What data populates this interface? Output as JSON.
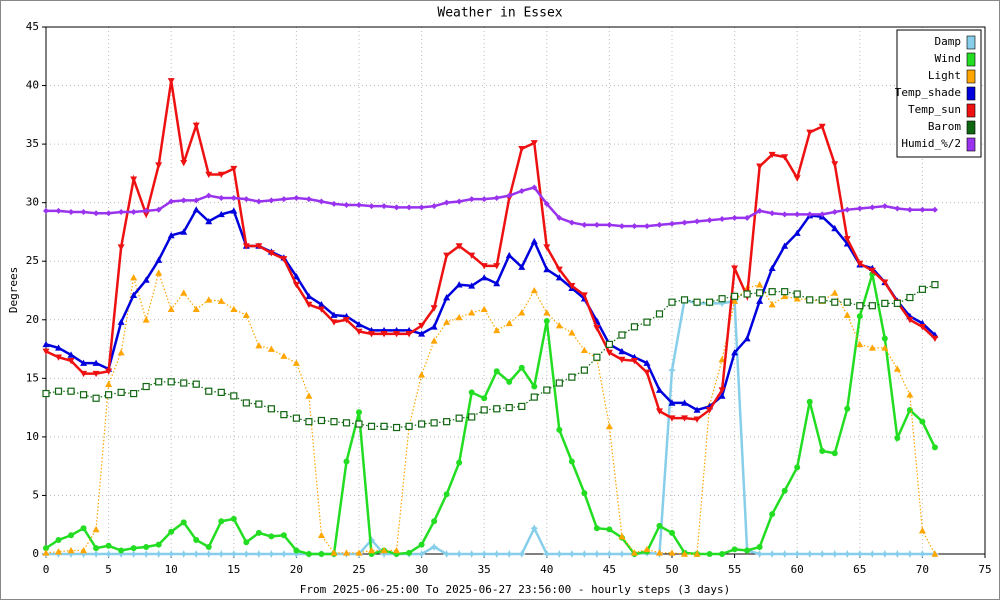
{
  "chart_data": {
    "type": "line",
    "title": "Weather in Essex",
    "ylabel": "Degrees",
    "xlabel": "From 2025-06-25:00 To 2025-06-27 23:56:00 - hourly steps (3 days)",
    "xlim": [
      0,
      75
    ],
    "ylim": [
      0,
      45
    ],
    "xticks": [
      0,
      5,
      10,
      15,
      20,
      25,
      30,
      35,
      40,
      45,
      50,
      55,
      60,
      65,
      70,
      75
    ],
    "yticks": [
      0,
      5,
      10,
      15,
      20,
      25,
      30,
      35,
      40,
      45
    ],
    "grid": true,
    "legend": "upper right",
    "x": [
      0,
      1,
      2,
      3,
      4,
      5,
      6,
      7,
      8,
      9,
      10,
      11,
      12,
      13,
      14,
      15,
      16,
      17,
      18,
      19,
      20,
      21,
      22,
      23,
      24,
      25,
      26,
      27,
      28,
      29,
      30,
      31,
      32,
      33,
      34,
      35,
      36,
      37,
      38,
      39,
      40,
      41,
      42,
      43,
      44,
      45,
      46,
      47,
      48,
      49,
      50,
      51,
      52,
      53,
      54,
      55,
      56,
      57,
      58,
      59,
      60,
      61,
      62,
      63,
      64,
      65,
      66,
      67,
      68,
      69,
      70,
      71
    ],
    "series": [
      {
        "name": "Damp",
        "color": "#87ceeb",
        "marker": "star",
        "style": "solid",
        "values": [
          0,
          0,
          0,
          0,
          0,
          0,
          0,
          0,
          0,
          0,
          0,
          0,
          0,
          0,
          0,
          0,
          0,
          0,
          0,
          0,
          0,
          0,
          0,
          0,
          0,
          0,
          1.2,
          0,
          0,
          0,
          0,
          0.6,
          0,
          0,
          0,
          0,
          0,
          0,
          0,
          2.2,
          0,
          0,
          0,
          0,
          0,
          0,
          0,
          0,
          0.1,
          0,
          15.7,
          21.7,
          21.4,
          21.4,
          21.4,
          21.6,
          0.3,
          0,
          0,
          0,
          0,
          0,
          0,
          0,
          0,
          0,
          0,
          0,
          0,
          0,
          0,
          0
        ]
      },
      {
        "name": "Wind",
        "color": "#22dd22",
        "marker": "circle",
        "style": "solid",
        "values": [
          0.5,
          1.2,
          1.6,
          2.2,
          0.5,
          0.7,
          0.3,
          0.5,
          0.6,
          0.8,
          1.9,
          2.7,
          1.2,
          0.6,
          2.8,
          3.0,
          1.0,
          1.8,
          1.5,
          1.6,
          0.3,
          0,
          0,
          0,
          7.9,
          12.1,
          0,
          0.3,
          0,
          0.1,
          0.8,
          2.8,
          5.1,
          7.8,
          13.8,
          13.3,
          15.6,
          14.7,
          15.9,
          14.3,
          19.9,
          10.6,
          7.9,
          5.2,
          2.2,
          2.1,
          1.4,
          0,
          0.2,
          2.4,
          1.8,
          0.1,
          0,
          0,
          0,
          0.4,
          0.3,
          0.6,
          3.4,
          5.4,
          7.4,
          13.0,
          8.8,
          8.6,
          12.4,
          20.3,
          23.9,
          18.4,
          9.9,
          12.3,
          11.3,
          9.1
        ]
      },
      {
        "name": "Light",
        "color": "#ffa500",
        "marker": "triangle-up",
        "style": "dotted",
        "values": [
          0.1,
          0.2,
          0.3,
          0.3,
          2.1,
          14.5,
          17.2,
          23.6,
          20.0,
          24.0,
          20.9,
          22.3,
          20.9,
          21.7,
          21.6,
          20.9,
          20.4,
          17.8,
          17.5,
          16.9,
          16.3,
          13.5,
          1.6,
          0.1,
          0.1,
          0.1,
          0.3,
          0.3,
          0.3,
          10.9,
          15.3,
          18.2,
          19.8,
          20.2,
          20.6,
          20.9,
          19.1,
          19.7,
          20.6,
          22.5,
          20.6,
          19.5,
          18.9,
          17.4,
          16.7,
          10.9,
          1.5,
          0.1,
          0.4,
          0.1,
          0.1,
          0,
          0,
          12.7,
          16.6,
          21.6,
          22.7,
          23.0,
          21.3,
          22.0,
          21.8,
          21.7,
          21.6,
          22.3,
          20.4,
          17.9,
          17.6,
          17.6,
          15.8,
          13.6,
          2.0,
          0
        ]
      },
      {
        "name": "Temp_shade",
        "color": "#0000dd",
        "marker": "triangle-up",
        "style": "solid",
        "values": [
          17.9,
          17.6,
          17.0,
          16.3,
          16.3,
          15.8,
          19.8,
          22.1,
          23.4,
          25.1,
          27.2,
          27.5,
          29.4,
          28.4,
          29.0,
          29.3,
          26.3,
          26.3,
          25.8,
          25.3,
          23.7,
          22.0,
          21.3,
          20.4,
          20.3,
          19.6,
          19.1,
          19.1,
          19.1,
          19.1,
          18.8,
          19.4,
          21.9,
          23.0,
          22.9,
          23.6,
          23.1,
          25.5,
          24.5,
          26.7,
          24.3,
          23.6,
          22.7,
          21.8,
          19.9,
          17.9,
          17.3,
          16.8,
          16.3,
          14.0,
          12.9,
          12.9,
          12.3,
          12.6,
          13.5,
          17.2,
          18.4,
          21.6,
          24.4,
          26.3,
          27.4,
          28.9,
          28.8,
          27.8,
          26.5,
          24.7,
          24.4,
          23.2,
          21.6,
          20.3,
          19.7,
          18.7
        ]
      },
      {
        "name": "Temp_sun",
        "color": "#ee1111",
        "marker": "triangle-down",
        "style": "solid",
        "values": [
          17.3,
          16.8,
          16.5,
          15.4,
          15.4,
          15.6,
          26.2,
          32.0,
          29.0,
          33.2,
          40.4,
          33.4,
          36.6,
          32.4,
          32.4,
          32.9,
          26.3,
          26.3,
          25.7,
          25.2,
          23.0,
          21.3,
          20.9,
          19.8,
          20.0,
          19.0,
          18.8,
          18.8,
          18.8,
          18.8,
          19.5,
          21.0,
          25.5,
          26.3,
          25.5,
          24.6,
          24.6,
          30.4,
          34.6,
          35.1,
          26.2,
          24.3,
          22.9,
          22.1,
          19.3,
          17.2,
          16.6,
          16.5,
          15.5,
          12.2,
          11.6,
          11.6,
          11.5,
          12.3,
          14.0,
          24.4,
          22.0,
          33.1,
          34.1,
          33.9,
          32.1,
          36.0,
          36.5,
          33.3,
          26.9,
          24.8,
          24.2,
          23.2,
          21.5,
          20.0,
          19.4,
          18.4
        ]
      },
      {
        "name": "Barom",
        "color": "#116611",
        "marker": "square-open",
        "style": "dotted",
        "values": [
          13.7,
          13.9,
          13.9,
          13.6,
          13.3,
          13.6,
          13.8,
          13.7,
          14.3,
          14.7,
          14.7,
          14.6,
          14.5,
          13.9,
          13.8,
          13.5,
          12.9,
          12.8,
          12.4,
          11.9,
          11.6,
          11.3,
          11.4,
          11.3,
          11.2,
          11.1,
          10.9,
          10.9,
          10.8,
          10.9,
          11.1,
          11.2,
          11.3,
          11.6,
          11.7,
          12.3,
          12.4,
          12.5,
          12.6,
          13.4,
          14.0,
          14.6,
          15.1,
          15.7,
          16.8,
          17.9,
          18.7,
          19.4,
          19.8,
          20.5,
          21.5,
          21.7,
          21.5,
          21.5,
          21.8,
          22.0,
          22.2,
          22.3,
          22.4,
          22.4,
          22.2,
          21.7,
          21.7,
          21.5,
          21.5,
          21.2,
          21.2,
          21.4,
          21.4,
          21.9,
          22.6,
          23.0
        ]
      },
      {
        "name": "Humid_%/2",
        "color": "#9933ee",
        "marker": "diamond",
        "style": "solid",
        "values": [
          29.3,
          29.3,
          29.2,
          29.2,
          29.1,
          29.1,
          29.2,
          29.2,
          29.3,
          29.4,
          30.1,
          30.2,
          30.2,
          30.6,
          30.4,
          30.4,
          30.3,
          30.1,
          30.2,
          30.3,
          30.4,
          30.3,
          30.1,
          29.9,
          29.8,
          29.8,
          29.7,
          29.7,
          29.6,
          29.6,
          29.6,
          29.7,
          30.0,
          30.1,
          30.3,
          30.3,
          30.4,
          30.6,
          31.0,
          31.3,
          29.9,
          28.7,
          28.3,
          28.1,
          28.1,
          28.1,
          28.0,
          28.0,
          28.0,
          28.1,
          28.2,
          28.3,
          28.4,
          28.5,
          28.6,
          28.7,
          28.7,
          29.3,
          29.1,
          29.0,
          29.0,
          29.0,
          29.0,
          29.2,
          29.4,
          29.5,
          29.6,
          29.7,
          29.5,
          29.4,
          29.4,
          29.4
        ]
      }
    ]
  }
}
